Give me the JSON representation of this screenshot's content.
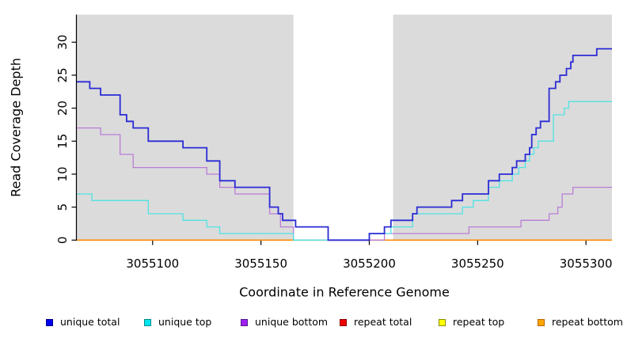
{
  "chart_data": {
    "type": "line",
    "subtype": "step",
    "title": "",
    "xlabel": "Coordinate in Reference Genome",
    "ylabel": "Read Coverage Depth",
    "xlim": [
      3055065,
      3055312
    ],
    "ylim": [
      0,
      34
    ],
    "x_ticks": [
      3055100,
      3055150,
      3055200,
      3055250,
      3055300
    ],
    "y_ticks": [
      0,
      5,
      10,
      15,
      20,
      25,
      30
    ],
    "grid": false,
    "legend_position": "bottom",
    "panel_background": "#ffffff",
    "shaded_regions": [
      {
        "from": 3055065,
        "to": 3055165,
        "color": "#DBDBDB"
      },
      {
        "from": 3055211,
        "to": 3055312,
        "color": "#DBDBDB"
      }
    ],
    "gap_region": {
      "from": 3055165,
      "to": 3055211,
      "color": "#FFFFFF"
    },
    "legend": [
      {
        "label": "unique total",
        "fill": "#0000EE",
        "border": "#00008B"
      },
      {
        "label": "unique top",
        "fill": "#00E5EE",
        "border": "#008B8B"
      },
      {
        "label": "unique bottom",
        "fill": "#A020F0",
        "border": "#551A8B"
      },
      {
        "label": "repeat total",
        "fill": "#EE0000",
        "border": "#8B0000"
      },
      {
        "label": "repeat top",
        "fill": "#FFFF00",
        "border": "#8B8B00"
      },
      {
        "label": "repeat bottom",
        "fill": "#FFA500",
        "border": "#B86800"
      }
    ],
    "series": [
      {
        "name": "repeat total",
        "color": "#CC0000",
        "width": 1.2,
        "steps": [
          [
            3055065,
            0
          ]
        ]
      },
      {
        "name": "repeat top",
        "color": "#FFFF00",
        "width": 1.2,
        "steps": [
          [
            3055065,
            0
          ]
        ]
      },
      {
        "name": "repeat bottom",
        "color": "#FF8E00",
        "width": 1.6,
        "steps": [
          [
            3055065,
            0
          ]
        ]
      },
      {
        "name": "unique bottom",
        "color": "#BA7CD6",
        "width": 1.3,
        "steps": [
          [
            3055065,
            17
          ],
          [
            3055076,
            16
          ],
          [
            3055085,
            13
          ],
          [
            3055091,
            11
          ],
          [
            3055125,
            10
          ],
          [
            3055131,
            8
          ],
          [
            3055138,
            7
          ],
          [
            3055154,
            4
          ],
          [
            3055159,
            2
          ],
          [
            3055165,
            0
          ],
          [
            3055207,
            1
          ],
          [
            3055246,
            2
          ],
          [
            3055270,
            3
          ],
          [
            3055283,
            4
          ],
          [
            3055287,
            5
          ],
          [
            3055289,
            7
          ],
          [
            3055294,
            8
          ]
        ]
      },
      {
        "name": "unique top",
        "color": "#4FE3E3",
        "width": 1.3,
        "steps": [
          [
            3055065,
            7
          ],
          [
            3055072,
            6
          ],
          [
            3055098,
            4
          ],
          [
            3055114,
            3
          ],
          [
            3055125,
            2
          ],
          [
            3055131,
            1
          ],
          [
            3055165,
            0
          ],
          [
            3055200,
            1
          ],
          [
            3055210,
            2
          ],
          [
            3055220,
            4
          ],
          [
            3055243,
            5
          ],
          [
            3055248,
            6
          ],
          [
            3055255,
            8
          ],
          [
            3055260,
            9
          ],
          [
            3055266,
            10
          ],
          [
            3055269,
            11
          ],
          [
            3055272,
            12
          ],
          [
            3055274,
            13
          ],
          [
            3055276,
            14
          ],
          [
            3055278,
            15
          ],
          [
            3055285,
            19
          ],
          [
            3055290,
            20
          ],
          [
            3055292,
            21
          ]
        ]
      },
      {
        "name": "unique total",
        "color": "#2B2BD5",
        "width": 1.8,
        "steps": [
          [
            3055065,
            24
          ],
          [
            3055071,
            23
          ],
          [
            3055076,
            22
          ],
          [
            3055085,
            19
          ],
          [
            3055088,
            18
          ],
          [
            3055091,
            17
          ],
          [
            3055098,
            15
          ],
          [
            3055114,
            14
          ],
          [
            3055125,
            12
          ],
          [
            3055131,
            9
          ],
          [
            3055138,
            8
          ],
          [
            3055154,
            5
          ],
          [
            3055158,
            4
          ],
          [
            3055160,
            3
          ],
          [
            3055166,
            2
          ],
          [
            3055181,
            0
          ],
          [
            3055200,
            1
          ],
          [
            3055207,
            2
          ],
          [
            3055210,
            3
          ],
          [
            3055220,
            4
          ],
          [
            3055222,
            5
          ],
          [
            3055238,
            6
          ],
          [
            3055243,
            7
          ],
          [
            3055255,
            9
          ],
          [
            3055260,
            10
          ],
          [
            3055266,
            11
          ],
          [
            3055268,
            12
          ],
          [
            3055272,
            13
          ],
          [
            3055274,
            14
          ],
          [
            3055275,
            16
          ],
          [
            3055277,
            17
          ],
          [
            3055279,
            18
          ],
          [
            3055283,
            23
          ],
          [
            3055286,
            24
          ],
          [
            3055288,
            25
          ],
          [
            3055291,
            26
          ],
          [
            3055293,
            27
          ],
          [
            3055294,
            28
          ],
          [
            3055305,
            29
          ]
        ]
      }
    ]
  }
}
